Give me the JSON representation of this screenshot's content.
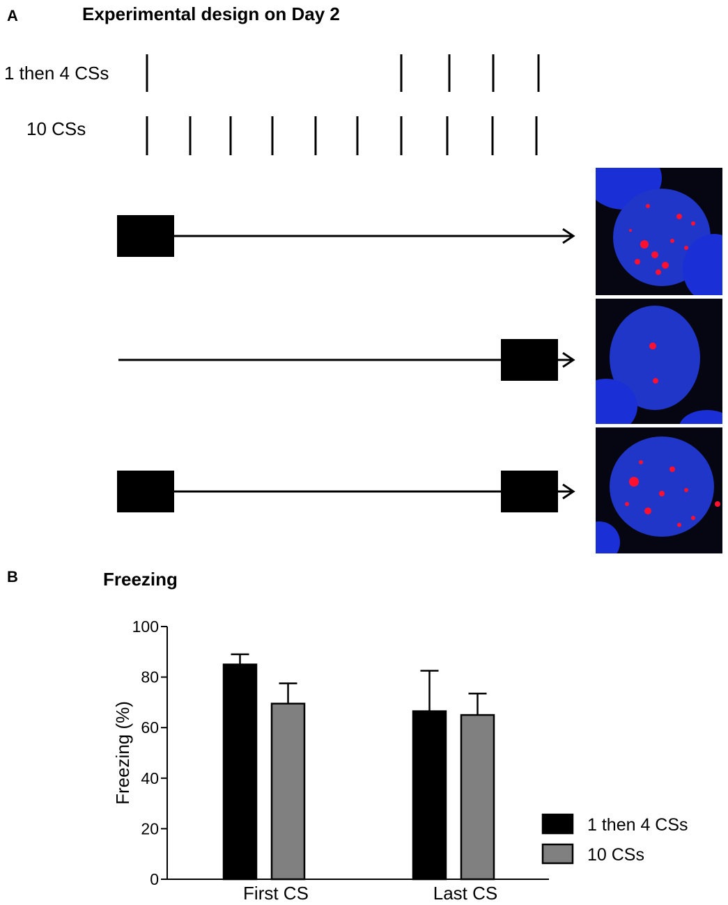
{
  "panel_a": {
    "letter": "A",
    "title": "Experimental design on Day 2",
    "rows": [
      {
        "label": "1 then 4 CSs",
        "cs_positions": [
          1,
          7,
          8,
          9,
          10
        ]
      },
      {
        "label": "10 CSs",
        "cs_positions": [
          1,
          2,
          3,
          4,
          5,
          6,
          7,
          8,
          9,
          10
        ]
      }
    ],
    "schemes": [
      {
        "blocks": [
          "start"
        ]
      },
      {
        "blocks": [
          "end"
        ]
      },
      {
        "blocks": [
          "start",
          "end"
        ]
      }
    ]
  },
  "panel_b": {
    "letter": "B",
    "title": "Freezing"
  },
  "colors": {
    "series_1": "#000000",
    "series_2": "#808080",
    "nucleus": "#1a2fd6",
    "signal": "#ff1030"
  },
  "chart_data": {
    "type": "bar",
    "categories": [
      "First CS",
      "Last CS"
    ],
    "series": [
      {
        "name": "1 then 4 CSs",
        "values": [
          85,
          66.5
        ],
        "errors": [
          4,
          16
        ]
      },
      {
        "name": "10 CSs",
        "values": [
          69.5,
          65
        ],
        "errors": [
          8,
          8.5
        ]
      }
    ],
    "title": "Freezing",
    "xlabel": "",
    "ylabel": "Freezing (%)",
    "ylim": [
      0,
      100
    ],
    "yticks": [
      "0",
      "20",
      "40",
      "60",
      "80",
      "100"
    ],
    "legend": "right",
    "grid": false
  }
}
